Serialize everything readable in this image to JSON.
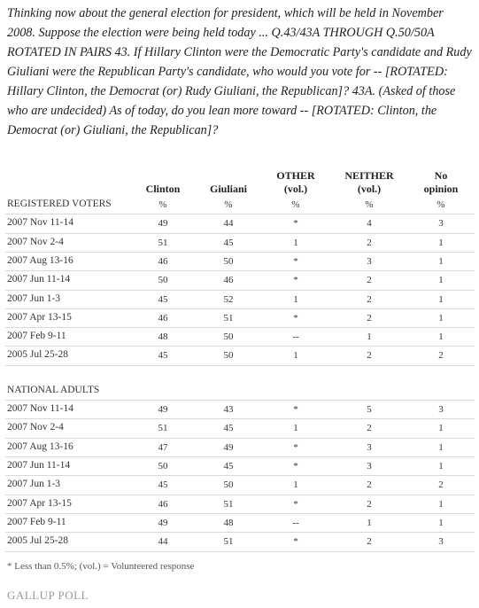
{
  "intro": "Thinking now about the general election for president, which will be held in November 2008. Suppose the election were being held today ... Q.43/43A THROUGH Q.50/50A ROTATED IN PAIRS  43. If Hillary Clinton were the Democratic Party's candidate and Rudy Giuliani were the Republican Party's candidate, who would you vote for -- [ROTATED: Hillary Clinton, the Democrat (or) Rudy Giuliani, the Republican]? 43A. (Asked of those who are undecided) As of today, do you lean more toward -- [ROTATED: Clinton, the Democrat (or) Giuliani, the Republican]?",
  "table": {
    "columns": [
      [
        "Clinton"
      ],
      [
        "Giuliani"
      ],
      [
        "OTHER",
        "(vol.)"
      ],
      [
        "NEITHER",
        "(vol.)"
      ],
      [
        "No",
        "opinion"
      ]
    ],
    "sections": [
      {
        "label": "REGISTERED VOTERS",
        "units": [
          "%",
          "%",
          "%",
          "%",
          "%"
        ],
        "rows": [
          {
            "date": "2007 Nov 11-14",
            "cells": [
              "49",
              "44",
              "*",
              "4",
              "3"
            ]
          },
          {
            "date": "2007 Nov 2-4",
            "cells": [
              "51",
              "45",
              "1",
              "2",
              "1"
            ]
          },
          {
            "date": "2007 Aug 13-16",
            "cells": [
              "46",
              "50",
              "*",
              "3",
              "1"
            ]
          },
          {
            "date": "2007 Jun 11-14",
            "cells": [
              "50",
              "46",
              "*",
              "2",
              "1"
            ]
          },
          {
            "date": "2007 Jun 1-3",
            "cells": [
              "45",
              "52",
              "1",
              "2",
              "1"
            ]
          },
          {
            "date": "2007 Apr 13-15",
            "cells": [
              "46",
              "51",
              "*",
              "2",
              "1"
            ]
          },
          {
            "date": "2007 Feb 9-11",
            "cells": [
              "48",
              "50",
              "--",
              "1",
              "1"
            ]
          },
          {
            "date": "2005 Jul 25-28",
            "cells": [
              "45",
              "50",
              "1",
              "2",
              "2"
            ]
          }
        ]
      },
      {
        "label": "NATIONAL ADULTS",
        "rows": [
          {
            "date": "2007 Nov 11-14",
            "cells": [
              "49",
              "43",
              "*",
              "5",
              "3"
            ]
          },
          {
            "date": "2007 Nov 2-4",
            "cells": [
              "51",
              "45",
              "1",
              "2",
              "1"
            ]
          },
          {
            "date": "2007 Aug 13-16",
            "cells": [
              "47",
              "49",
              "*",
              "3",
              "1"
            ]
          },
          {
            "date": "2007 Jun 11-14",
            "cells": [
              "50",
              "45",
              "*",
              "3",
              "1"
            ]
          },
          {
            "date": "2007 Jun 1-3",
            "cells": [
              "45",
              "50",
              "1",
              "2",
              "2"
            ]
          },
          {
            "date": "2007 Apr 13-15",
            "cells": [
              "46",
              "51",
              "*",
              "2",
              "1"
            ]
          },
          {
            "date": "2007 Feb 9-11",
            "cells": [
              "49",
              "48",
              "--",
              "1",
              "1"
            ]
          },
          {
            "date": "2005 Jul 25-28",
            "cells": [
              "44",
              "51",
              "*",
              "2",
              "3"
            ]
          }
        ]
      }
    ]
  },
  "footnote": "* Less than 0.5%; (vol.) = Volunteered response",
  "logo": "GALLUP POLL"
}
